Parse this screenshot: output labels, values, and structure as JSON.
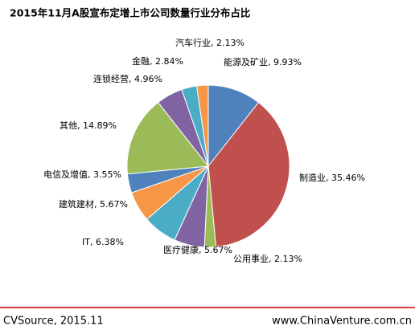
{
  "chart_data": {
    "type": "pie",
    "title": "2015年11月A股宣布定增上市公司数量行业分布占比",
    "categories": [
      "能源及矿业",
      "制造业",
      "公用事业",
      "医疗健康",
      "IT",
      "建筑建材",
      "电信及增值",
      "其他",
      "连锁经营",
      "金融",
      "汽车行业"
    ],
    "values": [
      9.93,
      35.46,
      2.13,
      5.67,
      6.38,
      5.67,
      3.55,
      14.89,
      4.96,
      2.84,
      2.13
    ],
    "value_labels": [
      "能源及矿业, 9.93%",
      "制造业, 35.46%",
      "公用事业, 2.13%",
      "医疗健康, 5.67%",
      "IT, 6.38%",
      "建筑建材, 5.67%",
      "电信及增值, 3.55%",
      "其他, 14.89%",
      "连锁经营, 4.96%",
      "金融, 2.84%",
      "汽车行业, 2.13%"
    ],
    "colors": [
      "#4f81bd",
      "#c0504d",
      "#9bbb59",
      "#8064a2",
      "#4bacc6",
      "#f79646",
      "#4f81bd",
      "#9bbb59",
      "#8064a2",
      "#4bacc6",
      "#f79646"
    ]
  },
  "footer": {
    "source": "CVSource, 2015.11",
    "site": "www.ChinaVenture.com.cn"
  }
}
